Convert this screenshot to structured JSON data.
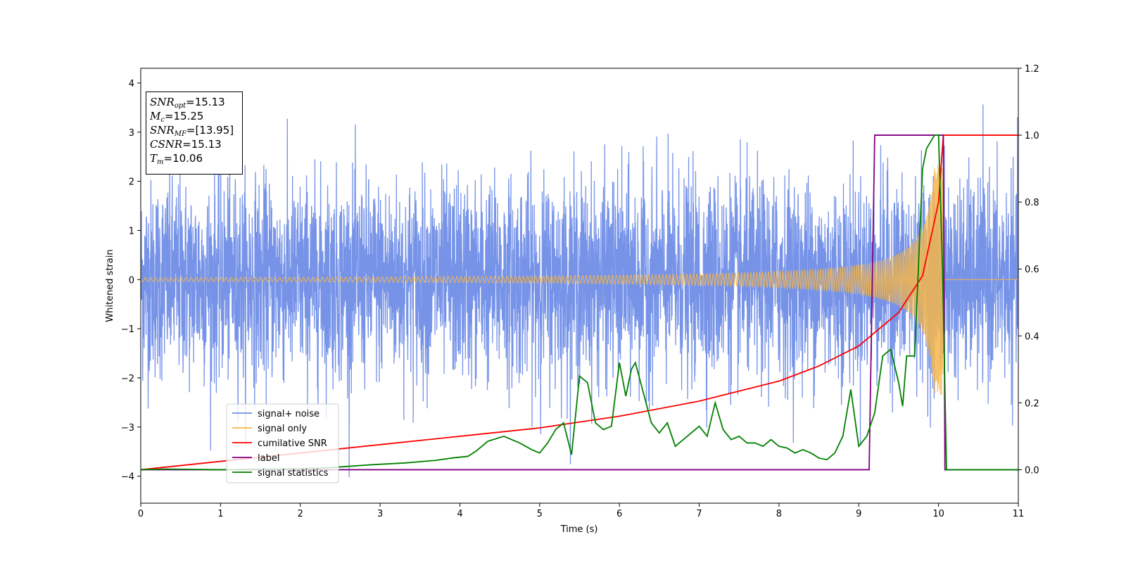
{
  "chart_data": {
    "type": "line",
    "xlabel": "Time (s)",
    "ylabel": "Whitened strain",
    "xlim": [
      0,
      11
    ],
    "ylim": [
      -4.55,
      4.3
    ],
    "y2lim": [
      -0.1,
      1.2
    ],
    "x_ticks": [
      0,
      1,
      2,
      3,
      4,
      5,
      6,
      7,
      8,
      9,
      10,
      11
    ],
    "y_ticks": [
      -4,
      -3,
      -2,
      -1,
      0,
      1,
      2,
      3,
      4
    ],
    "y2_ticks": [
      0.0,
      0.2,
      0.4,
      0.6,
      0.8,
      1.0,
      1.2
    ],
    "legend_position": "bottom-left",
    "colors": {
      "signal_noise": "#6f8de7",
      "signal_only": "#f5b54a",
      "cumulative_snr": "#ff0000",
      "label": "#800080",
      "signal_statistics": "#008000"
    },
    "series": [
      {
        "name": "signal+ noise",
        "axis": "left",
        "kind": "noise",
        "std": 1.0,
        "range": [
          -4.1,
          3.95
        ]
      },
      {
        "name": "signal only",
        "axis": "left",
        "kind": "chirp",
        "merger_time": 10.06,
        "end_time": 10.06,
        "max_amplitude": 2.35
      },
      {
        "name": "cumilative SNR",
        "axis": "right",
        "x": [
          0,
          1,
          2,
          3,
          4,
          5,
          6,
          7,
          8,
          8.5,
          9,
          9.5,
          9.8,
          10.0,
          10.06,
          10.1,
          11
        ],
        "y": [
          0.0,
          0.025,
          0.05,
          0.075,
          0.1,
          0.125,
          0.16,
          0.205,
          0.265,
          0.31,
          0.37,
          0.47,
          0.58,
          0.8,
          1.0,
          1.0,
          1.0
        ]
      },
      {
        "name": "label",
        "axis": "right",
        "x": [
          0,
          9.13,
          9.2,
          10.0,
          10.06,
          10.08,
          11
        ],
        "y": [
          0,
          0,
          1,
          1,
          1,
          0,
          0
        ]
      },
      {
        "name": "signal statistics",
        "axis": "right",
        "x": [
          0,
          0.3,
          1.0,
          2.0,
          2.3,
          2.6,
          2.9,
          3.3,
          3.7,
          3.9,
          4.1,
          4.2,
          4.35,
          4.55,
          4.75,
          4.9,
          5.0,
          5.1,
          5.2,
          5.3,
          5.4,
          5.5,
          5.6,
          5.7,
          5.8,
          5.9,
          6.0,
          6.08,
          6.15,
          6.2,
          6.3,
          6.4,
          6.5,
          6.6,
          6.7,
          6.8,
          6.9,
          7.0,
          7.1,
          7.2,
          7.3,
          7.4,
          7.5,
          7.6,
          7.7,
          7.8,
          7.9,
          8.0,
          8.1,
          8.2,
          8.3,
          8.4,
          8.5,
          8.6,
          8.7,
          8.8,
          8.9,
          9.0,
          9.1,
          9.2,
          9.3,
          9.4,
          9.5,
          9.55,
          9.6,
          9.7,
          9.8,
          9.85,
          9.9,
          9.95,
          10.0,
          10.05,
          10.1,
          11
        ],
        "y": [
          0.0,
          0.002,
          0.0,
          0.003,
          0.005,
          0.01,
          0.015,
          0.02,
          0.028,
          0.035,
          0.04,
          0.055,
          0.085,
          0.1,
          0.08,
          0.06,
          0.05,
          0.08,
          0.12,
          0.14,
          0.045,
          0.28,
          0.26,
          0.14,
          0.12,
          0.13,
          0.32,
          0.22,
          0.3,
          0.32,
          0.23,
          0.14,
          0.11,
          0.14,
          0.07,
          0.09,
          0.11,
          0.13,
          0.1,
          0.2,
          0.12,
          0.09,
          0.1,
          0.08,
          0.08,
          0.07,
          0.09,
          0.07,
          0.065,
          0.05,
          0.06,
          0.05,
          0.035,
          0.03,
          0.05,
          0.1,
          0.24,
          0.07,
          0.1,
          0.17,
          0.34,
          0.36,
          0.26,
          0.19,
          0.34,
          0.34,
          0.9,
          0.96,
          0.98,
          1.0,
          1.0,
          0.6,
          0.0,
          0.0
        ]
      }
    ],
    "annotation_box": {
      "lines": [
        {
          "symbol": "SNR",
          "subscript": "opt",
          "value": "=15.13"
        },
        {
          "symbol": "M",
          "subscript": "c",
          "value": "=15.25"
        },
        {
          "symbol": "SNR",
          "subscript": "MF",
          "value": "=[13.95]"
        },
        {
          "symbol": "CSNR",
          "subscript": "",
          "value": "=15.13"
        },
        {
          "symbol": "T",
          "subscript": "m",
          "value": "=10.06"
        }
      ]
    }
  }
}
